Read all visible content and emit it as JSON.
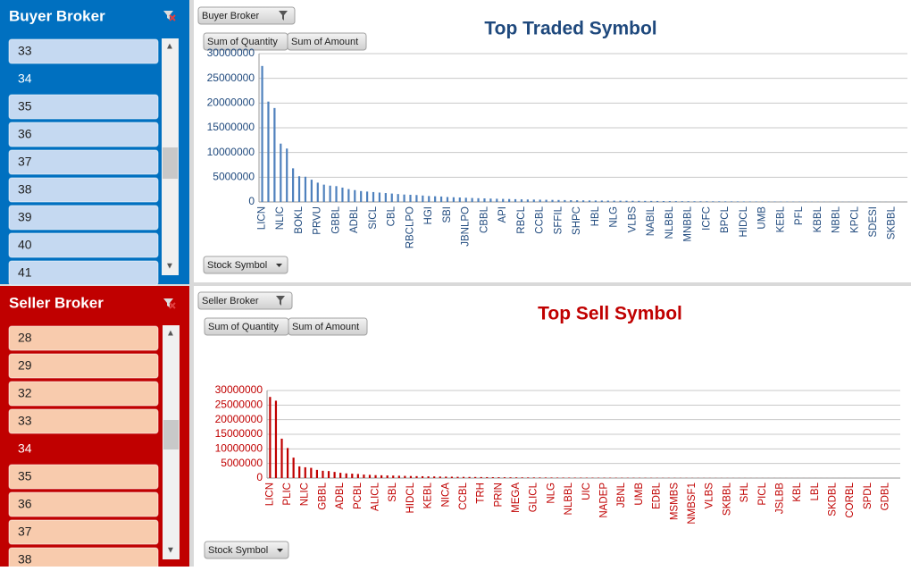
{
  "buyer_slicer": {
    "title": "Buyer Broker",
    "items": [
      {
        "label": "33",
        "selected": false
      },
      {
        "label": "34",
        "selected": true
      },
      {
        "label": "35",
        "selected": false
      },
      {
        "label": "36",
        "selected": false
      },
      {
        "label": "37",
        "selected": false
      },
      {
        "label": "38",
        "selected": false
      },
      {
        "label": "39",
        "selected": false
      },
      {
        "label": "40",
        "selected": false
      },
      {
        "label": "41",
        "selected": false
      }
    ]
  },
  "seller_slicer": {
    "title": "Seller Broker",
    "items": [
      {
        "label": "28",
        "selected": false
      },
      {
        "label": "29",
        "selected": false
      },
      {
        "label": "32",
        "selected": false
      },
      {
        "label": "33",
        "selected": false
      },
      {
        "label": "34",
        "selected": true
      },
      {
        "label": "35",
        "selected": false
      },
      {
        "label": "36",
        "selected": false
      },
      {
        "label": "37",
        "selected": false
      },
      {
        "label": "38",
        "selected": false
      }
    ]
  },
  "chart_data": [
    {
      "type": "bar",
      "title": "Top Traded Symbol",
      "color": "#4f81bd",
      "text_color": "#1f497d",
      "grid": true,
      "filter_field": "Buyer Broker",
      "value_fields": [
        "Sum of Quantity",
        "Sum of Amount"
      ],
      "axis_field": "Stock Symbol",
      "ylim": [
        0,
        30000000
      ],
      "yticks": [
        0,
        5000000,
        10000000,
        15000000,
        20000000,
        25000000,
        30000000
      ],
      "categories": [
        "LICN",
        null,
        null,
        "NLIC",
        null,
        null,
        "BOKL",
        null,
        null,
        "PRVU",
        null,
        null,
        "GBBL",
        null,
        null,
        "ADBL",
        null,
        null,
        "SICL",
        null,
        null,
        "CBL",
        null,
        null,
        "RBCLPO",
        null,
        null,
        "HGI",
        null,
        null,
        "SBI",
        null,
        null,
        "JBNLPO",
        null,
        null,
        "CBBL",
        null,
        null,
        "API",
        null,
        null,
        "RBCL",
        null,
        null,
        "CCBL",
        null,
        null,
        "SFFIL",
        null,
        null,
        "SHPC",
        null,
        null,
        "HBL",
        null,
        null,
        "NLG",
        null,
        null,
        "VLBS",
        null,
        null,
        "NABIL",
        null,
        null,
        "NLBBL",
        null,
        null,
        "MNBBL",
        null,
        null,
        "ICFC",
        null,
        null,
        "BPCL",
        null,
        null,
        "HIDCL",
        null,
        null,
        "UMB",
        null,
        null,
        "KEBL",
        null,
        null,
        "PFL",
        null,
        null,
        "KBBL",
        null,
        null,
        "NBBL",
        null,
        null,
        "KPCL",
        null,
        null,
        "SDESI",
        null,
        null,
        "SKBBL",
        null,
        null
      ],
      "values": [
        27500000,
        20300000,
        19000000,
        11800000,
        10800000,
        6800000,
        5200000,
        5100000,
        4500000,
        3900000,
        3500000,
        3300000,
        3200000,
        2900000,
        2600000,
        2400000,
        2200000,
        2100000,
        2000000,
        1900000,
        1800000,
        1700000,
        1600000,
        1500000,
        1450000,
        1400000,
        1300000,
        1200000,
        1150000,
        1100000,
        1000000,
        950000,
        900000,
        850000,
        800000,
        760000,
        720000,
        680000,
        650000,
        620000,
        590000,
        560000,
        530000,
        500000,
        480000,
        460000,
        440000,
        420000,
        400000,
        380000,
        360000,
        340000,
        320000,
        300000,
        290000,
        280000,
        270000,
        260000,
        250000,
        240000,
        230000,
        220000,
        210000,
        200000,
        190000,
        180000,
        170000,
        160000,
        150000,
        145000,
        140000,
        135000,
        130000,
        125000,
        120000,
        115000,
        110000,
        105000,
        100000,
        95000,
        90000,
        85000,
        80000,
        75000,
        70000,
        65000,
        60000,
        55000,
        50000,
        45000,
        40000,
        38000,
        36000,
        34000,
        32000,
        30000,
        28000,
        26000,
        24000,
        22000,
        20000,
        18000,
        16000,
        14000,
        12000
      ]
    },
    {
      "type": "bar",
      "title": "Top Sell Symbol",
      "color": "#c00000",
      "text_color": "#c00000",
      "grid": true,
      "filter_field": "Seller Broker",
      "value_fields": [
        "Sum of Quantity",
        "Sum of Amount"
      ],
      "axis_field": "Stock Symbol",
      "ylim": [
        0,
        30000000
      ],
      "yticks": [
        0,
        5000000,
        10000000,
        15000000,
        20000000,
        25000000,
        30000000
      ],
      "categories": [
        "LICN",
        null,
        null,
        "PLIC",
        null,
        null,
        "NLIC",
        null,
        null,
        "GBBL",
        null,
        null,
        "ADBL",
        null,
        null,
        "PCBL",
        null,
        null,
        "ALICL",
        null,
        null,
        "SBL",
        null,
        null,
        "HIDCL",
        null,
        null,
        "KEBL",
        null,
        null,
        "NICA",
        null,
        null,
        "CCBL",
        null,
        null,
        "TRH",
        null,
        null,
        "PRIN",
        null,
        null,
        "MEGA",
        null,
        null,
        "GLICL",
        null,
        null,
        "NLG",
        null,
        null,
        "NLBBL",
        null,
        null,
        "UIC",
        null,
        null,
        "NADEP",
        null,
        null,
        "JBNL",
        null,
        null,
        "UMB",
        null,
        null,
        "EDBL",
        null,
        null,
        "MSMBS",
        null,
        null,
        "NMBSF1",
        null,
        null,
        "VLBS",
        null,
        null,
        "SKBBL",
        null,
        null,
        "SHL",
        null,
        null,
        "PICL",
        null,
        null,
        "JSLBB",
        null,
        null,
        "KBL",
        null,
        null,
        "LBL",
        null,
        null,
        "SKDBL",
        null,
        null,
        "CORBL",
        null,
        null,
        "SPDL",
        null,
        null,
        "GDBL",
        null,
        null
      ],
      "values": [
        27800000,
        26500000,
        13500000,
        10300000,
        7000000,
        4000000,
        3700000,
        3500000,
        2800000,
        2500000,
        2400000,
        2100000,
        1800000,
        1600000,
        1500000,
        1400000,
        1200000,
        1100000,
        1000000,
        950000,
        900000,
        850000,
        800000,
        750000,
        700000,
        660000,
        620000,
        580000,
        550000,
        520000,
        490000,
        460000,
        430000,
        400000,
        380000,
        360000,
        340000,
        320000,
        300000,
        285000,
        270000,
        255000,
        240000,
        230000,
        220000,
        210000,
        200000,
        190000,
        180000,
        170000,
        160000,
        150000,
        145000,
        140000,
        135000,
        130000,
        125000,
        120000,
        115000,
        110000,
        105000,
        100000,
        95000,
        90000,
        85000,
        80000,
        75000,
        70000,
        66000,
        62000,
        58000,
        54000,
        50000,
        47000,
        44000,
        41000,
        38000,
        36000,
        34000,
        32000,
        30000,
        28000,
        26000,
        24000,
        22000,
        20000,
        19000,
        18000,
        17000,
        16000,
        15000,
        14000,
        13000,
        12000,
        11000,
        10000,
        9000,
        8000,
        7000,
        6000,
        5000,
        4500,
        4000,
        3500,
        3000,
        2500,
        2000,
        1500
      ]
    }
  ]
}
